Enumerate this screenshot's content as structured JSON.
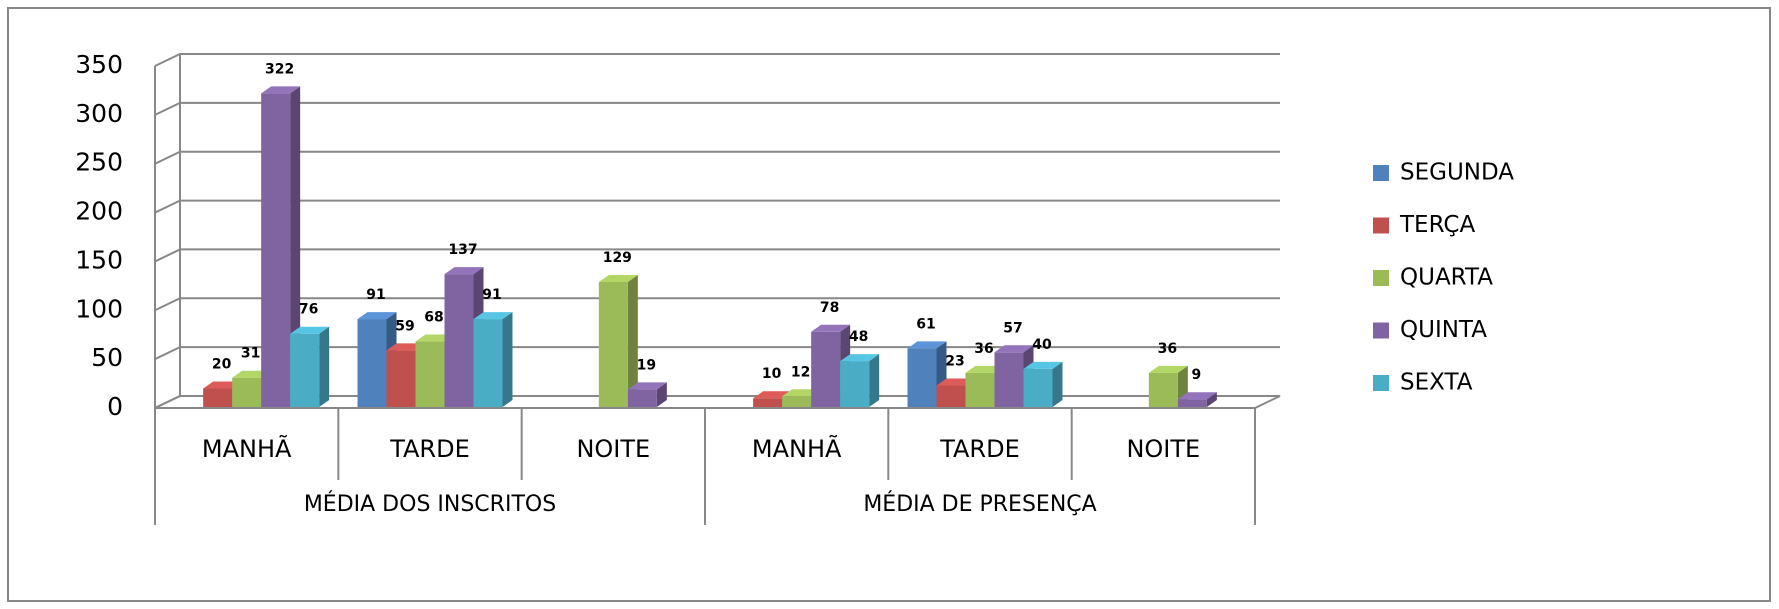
{
  "chart_data": {
    "type": "bar3d",
    "categories": [
      "MANHÃ",
      "TARDE",
      "NOITE",
      "MANHÃ",
      "TARDE",
      "NOITE"
    ],
    "groups": [
      "MÉDIA DOS INSCRITOS",
      "MÉDIA DE PRESENÇA"
    ],
    "series": [
      {
        "name": "SEGUNDA",
        "color": "#4f81bd",
        "values": [
          null,
          91,
          null,
          null,
          61,
          null
        ]
      },
      {
        "name": "TERÇA",
        "color": "#c0504d",
        "values": [
          20,
          59,
          null,
          10,
          23,
          null
        ]
      },
      {
        "name": "QUARTA",
        "color": "#9bbb59",
        "values": [
          31,
          68,
          129,
          12,
          36,
          36
        ]
      },
      {
        "name": "QUINTA",
        "color": "#8064a2",
        "values": [
          322,
          137,
          19,
          78,
          57,
          9
        ]
      },
      {
        "name": "SEXTA",
        "color": "#4bacc6",
        "values": [
          76,
          91,
          null,
          48,
          40,
          null
        ]
      }
    ],
    "ylim": [
      0,
      350
    ],
    "yticks": [
      0,
      50,
      100,
      150,
      200,
      250,
      300,
      350
    ],
    "grid": true,
    "legend": "right"
  }
}
